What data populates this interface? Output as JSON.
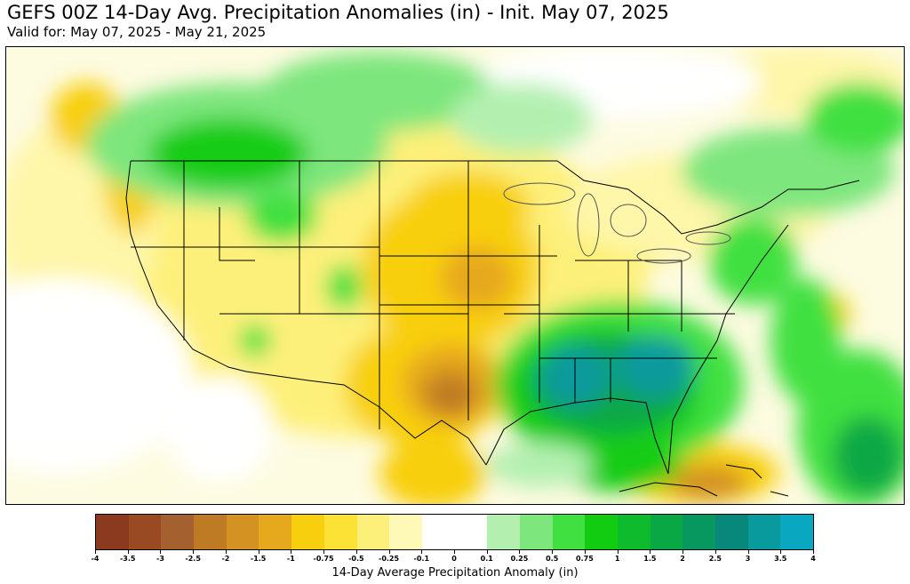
{
  "title": "GEFS 00Z 14-Day Avg. Precipitation Anomalies (in) - Init. May 07, 2025",
  "subtitle": "Valid for: May 07, 2025 - May 21, 2025",
  "colorbar": {
    "label": "14-Day Average Precipitation Anomaly (in)",
    "ticks": [
      "-4",
      "-3.5",
      "-3",
      "-2.5",
      "-2",
      "-1.5",
      "-1",
      "-0.75",
      "-0.5",
      "-0.25",
      "-0.1",
      "0",
      "0.1",
      "0.25",
      "0.5",
      "0.75",
      "1",
      "1.5",
      "2",
      "2.5",
      "3",
      "3.5",
      "4"
    ],
    "colors": [
      "#8b3a1f",
      "#9a4a22",
      "#a56030",
      "#bf7a24",
      "#d39222",
      "#e6a81c",
      "#f8cf0e",
      "#fbe235",
      "#fdf07a",
      "#fef9b6",
      "#ffffff",
      "#ffffff",
      "#b3f0b0",
      "#7de67d",
      "#3fe03f",
      "#12cc12",
      "#0dbb2c",
      "#0aa844",
      "#06985f",
      "#07887a",
      "#089a9c",
      "#0aa8c0"
    ]
  },
  "map": {
    "region": "Contiguous United States",
    "wet_regions": [
      "Southeast U.S.",
      "Northern Rockies / Canadian Prairies",
      "Northeast",
      "Western Atlantic"
    ],
    "dry_regions": [
      "Southern Plains",
      "Central Plains",
      "Upper Midwest",
      "Pacific Northwest coast",
      "Caribbean"
    ]
  }
}
